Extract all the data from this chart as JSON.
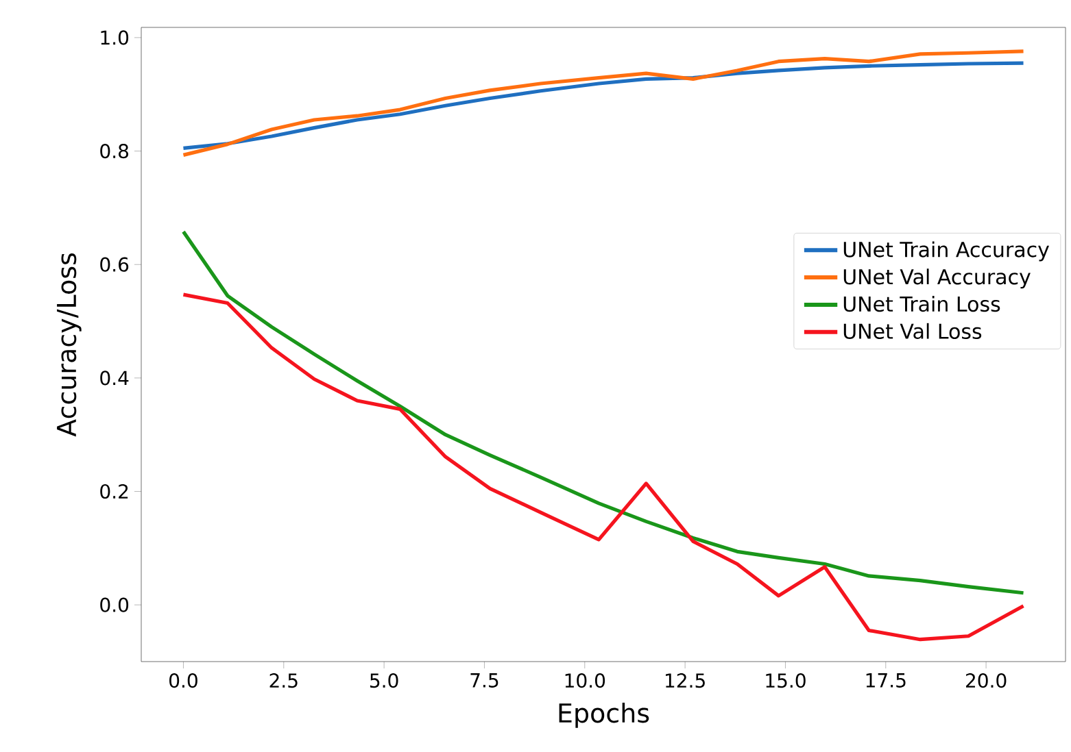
{
  "chart_data": {
    "type": "line",
    "xlabel": "Epochs",
    "ylabel": "Accuracy/Loss",
    "x": [
      0,
      1.1,
      2.2,
      3.26,
      4.33,
      5.4,
      6.53,
      7.64,
      8.9,
      10.35,
      11.53,
      12.7,
      13.8,
      14.83,
      15.98,
      17.08,
      18.36,
      19.56,
      20.93
    ],
    "series": [
      {
        "name": "UNet Train Accuracy",
        "color": "#1f6fc0",
        "values": [
          0.805,
          0.813,
          0.826,
          0.841,
          0.855,
          0.865,
          0.88,
          0.893,
          0.906,
          0.919,
          0.927,
          0.929,
          0.937,
          0.942,
          0.947,
          0.95,
          0.952,
          0.954,
          0.955
        ]
      },
      {
        "name": "UNet Val Accuracy",
        "color": "#ff6f10",
        "values": [
          0.793,
          0.812,
          0.838,
          0.855,
          0.862,
          0.873,
          0.893,
          0.907,
          0.919,
          0.929,
          0.937,
          0.927,
          0.942,
          0.958,
          0.963,
          0.958,
          0.971,
          0.973,
          0.976
        ]
      },
      {
        "name": "UNet Train Loss",
        "color": "#1a961a",
        "values": [
          0.658,
          0.545,
          0.49,
          0.442,
          0.395,
          0.35,
          0.3,
          0.264,
          0.225,
          0.179,
          0.147,
          0.118,
          0.094,
          0.083,
          0.072,
          0.051,
          0.043,
          0.032,
          0.021
        ]
      },
      {
        "name": "UNet Val Loss",
        "color": "#f5141e",
        "values": [
          0.547,
          0.532,
          0.453,
          0.398,
          0.36,
          0.345,
          0.261,
          0.205,
          0.163,
          0.115,
          0.214,
          0.112,
          0.072,
          0.016,
          0.067,
          -0.045,
          -0.061,
          -0.055,
          -0.002
        ]
      }
    ],
    "xlim": [
      -1.05,
      21.98
    ],
    "ylim": [
      -0.1,
      1.018
    ],
    "xticks": [
      {
        "value": 0,
        "label": "0.0"
      },
      {
        "value": 2.5,
        "label": "2.5"
      },
      {
        "value": 5,
        "label": "5.0"
      },
      {
        "value": 7.5,
        "label": "7.5"
      },
      {
        "value": 10,
        "label": "10.0"
      },
      {
        "value": 12.5,
        "label": "12.5"
      },
      {
        "value": 15,
        "label": "15.0"
      },
      {
        "value": 17.5,
        "label": "17.5"
      },
      {
        "value": 20,
        "label": "20.0"
      }
    ],
    "yticks": [
      {
        "value": 0,
        "label": "0.0"
      },
      {
        "value": 0.2,
        "label": "0.2"
      },
      {
        "value": 0.4,
        "label": "0.4"
      },
      {
        "value": 0.6,
        "label": "0.6"
      },
      {
        "value": 0.8,
        "label": "0.8"
      },
      {
        "value": 1.0,
        "label": "1.0"
      }
    ],
    "legend": "right",
    "grid": false,
    "marker": "none",
    "line_style": "solid"
  }
}
